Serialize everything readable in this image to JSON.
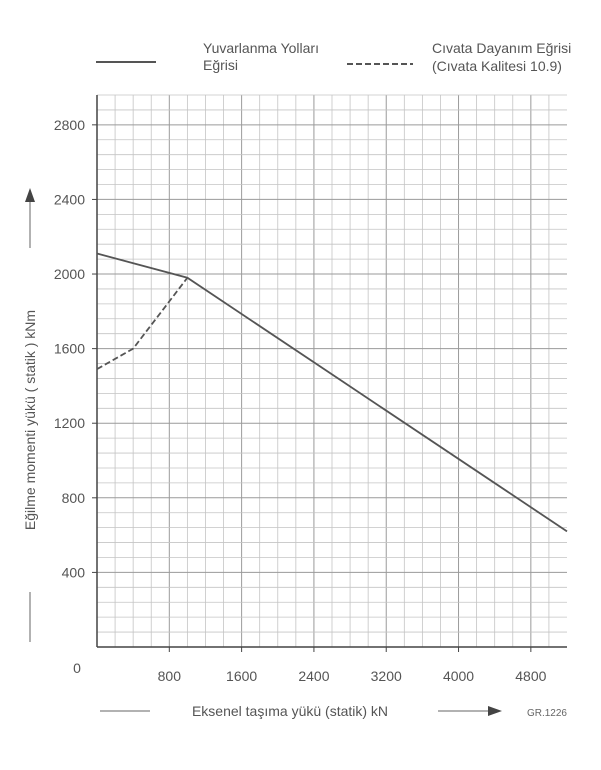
{
  "legend": {
    "solid_line": [
      "Yuvarlanma Yolları",
      "Eğrisi"
    ],
    "dashed_line": [
      "Cıvata Dayanım Eğrisi",
      "(Cıvata Kalitesi 10.9)"
    ]
  },
  "figure_code": "GR.1226",
  "chart_data": {
    "type": "line",
    "xlabel": "Eksenel taşıma yükü  (statik) kN",
    "ylabel": "Eğilme momenti yükü  ( statik )   kNm",
    "origin_label": "0",
    "xlim": [
      0,
      5200
    ],
    "ylim": [
      0,
      2960
    ],
    "x_ticks": [
      800,
      1600,
      2400,
      3200,
      4000,
      4800
    ],
    "y_ticks": [
      400,
      800,
      1200,
      1600,
      2000,
      2400,
      2800
    ],
    "grid": true,
    "legend_position": "top",
    "series": [
      {
        "name": "Yuvarlanma Yolları Eğrisi",
        "style": "solid",
        "color": "#555555",
        "points": [
          [
            0,
            2110
          ],
          [
            1000,
            1980
          ],
          [
            5200,
            620
          ]
        ]
      },
      {
        "name": "Cıvata Dayanım Eğrisi (Cıvata Kalitesi 10.9)",
        "style": "dashed",
        "color": "#555555",
        "points": [
          [
            0,
            1490
          ],
          [
            400,
            1600
          ],
          [
            1000,
            1980
          ]
        ]
      }
    ]
  }
}
